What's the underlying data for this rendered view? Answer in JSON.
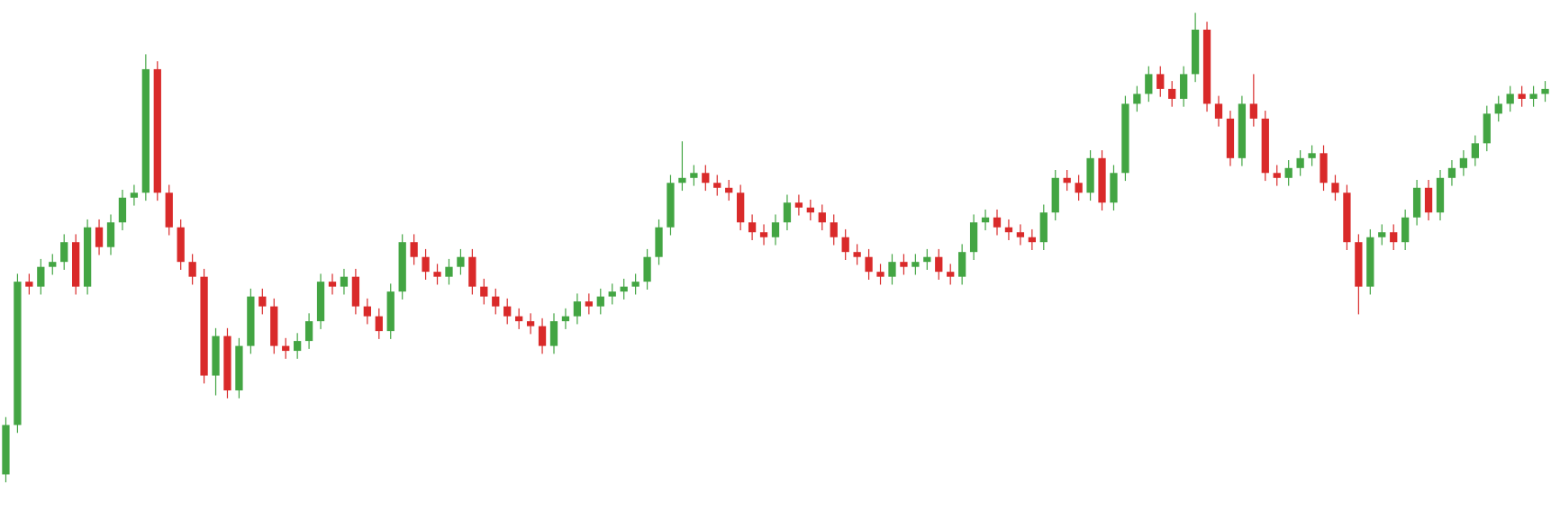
{
  "chart_data": {
    "type": "candlestick",
    "open": [
      36,
      86,
      231,
      226,
      246,
      251,
      271,
      226,
      286,
      266,
      291,
      316,
      321,
      446,
      321,
      286,
      251,
      236,
      136,
      176,
      121,
      166,
      216,
      206,
      166,
      161,
      171,
      191,
      231,
      226,
      236,
      206,
      196,
      181,
      221,
      271,
      256,
      241,
      236,
      246,
      256,
      226,
      216,
      206,
      196,
      191,
      186,
      166,
      191,
      196,
      211,
      206,
      216,
      221,
      226,
      231,
      256,
      286,
      331,
      336,
      341,
      331,
      326,
      321,
      291,
      281,
      276,
      291,
      311,
      306,
      301,
      291,
      276,
      261,
      256,
      241,
      236,
      251,
      246,
      251,
      256,
      241,
      236,
      261,
      291,
      296,
      286,
      281,
      276,
      271,
      301,
      336,
      331,
      321,
      356,
      311,
      341,
      411,
      421,
      441,
      426,
      416,
      441,
      486,
      411,
      396,
      356,
      411,
      396,
      341,
      336,
      346,
      356,
      361,
      331,
      321,
      271,
      226,
      276,
      281,
      271,
      296,
      326,
      301,
      336,
      346,
      356,
      371,
      401,
      411,
      421,
      416,
      421
    ],
    "high": [
      94,
      239,
      239,
      254,
      259,
      279,
      279,
      294,
      294,
      299,
      324,
      329,
      461,
      454,
      329,
      294,
      259,
      244,
      184,
      184,
      174,
      224,
      224,
      214,
      174,
      179,
      199,
      239,
      239,
      244,
      244,
      214,
      204,
      229,
      279,
      279,
      264,
      249,
      254,
      264,
      264,
      234,
      224,
      214,
      204,
      199,
      194,
      199,
      204,
      219,
      219,
      224,
      229,
      234,
      239,
      264,
      294,
      339,
      373,
      349,
      349,
      339,
      334,
      329,
      299,
      289,
      299,
      319,
      319,
      314,
      309,
      299,
      284,
      269,
      264,
      249,
      259,
      259,
      259,
      264,
      264,
      249,
      269,
      299,
      304,
      304,
      294,
      289,
      284,
      309,
      344,
      344,
      339,
      364,
      364,
      349,
      419,
      429,
      449,
      449,
      434,
      449,
      503,
      494,
      419,
      404,
      419,
      441,
      404,
      349,
      354,
      364,
      369,
      369,
      339,
      329,
      279,
      284,
      289,
      289,
      304,
      334,
      334,
      344,
      354,
      364,
      379,
      409,
      419,
      429,
      429,
      429,
      434
    ],
    "low": [
      28,
      78,
      218,
      218,
      238,
      243,
      218,
      218,
      258,
      258,
      283,
      308,
      313,
      313,
      278,
      243,
      228,
      128,
      116,
      113,
      113,
      158,
      198,
      158,
      153,
      153,
      163,
      183,
      218,
      218,
      198,
      188,
      173,
      173,
      213,
      248,
      233,
      228,
      228,
      238,
      218,
      208,
      198,
      188,
      183,
      178,
      158,
      158,
      183,
      188,
      198,
      198,
      208,
      213,
      218,
      223,
      248,
      278,
      323,
      328,
      323,
      318,
      313,
      283,
      273,
      268,
      268,
      283,
      298,
      293,
      283,
      268,
      253,
      248,
      233,
      228,
      228,
      238,
      238,
      243,
      233,
      228,
      228,
      253,
      283,
      278,
      273,
      268,
      263,
      263,
      293,
      323,
      313,
      313,
      303,
      303,
      333,
      403,
      413,
      418,
      408,
      408,
      433,
      403,
      388,
      348,
      348,
      388,
      333,
      328,
      328,
      338,
      348,
      323,
      313,
      263,
      198,
      218,
      268,
      263,
      263,
      288,
      293,
      293,
      328,
      338,
      348,
      363,
      393,
      403,
      408,
      408,
      413
    ],
    "close": [
      86,
      231,
      226,
      246,
      251,
      271,
      226,
      286,
      266,
      291,
      316,
      321,
      446,
      321,
      286,
      251,
      236,
      136,
      176,
      121,
      166,
      216,
      206,
      166,
      161,
      171,
      191,
      231,
      226,
      236,
      206,
      196,
      181,
      221,
      271,
      256,
      241,
      236,
      246,
      256,
      226,
      216,
      206,
      196,
      191,
      186,
      166,
      191,
      196,
      211,
      206,
      216,
      221,
      226,
      231,
      256,
      286,
      331,
      336,
      341,
      331,
      326,
      321,
      291,
      281,
      276,
      291,
      311,
      306,
      301,
      291,
      276,
      261,
      256,
      241,
      236,
      251,
      246,
      251,
      256,
      241,
      236,
      261,
      291,
      296,
      286,
      281,
      276,
      271,
      301,
      336,
      331,
      321,
      356,
      311,
      341,
      411,
      421,
      441,
      426,
      416,
      441,
      486,
      411,
      396,
      356,
      411,
      396,
      341,
      336,
      346,
      356,
      361,
      331,
      321,
      271,
      226,
      276,
      281,
      271,
      296,
      326,
      301,
      336,
      346,
      356,
      371,
      401,
      411,
      421,
      416,
      421,
      426
    ],
    "ylim": [
      0,
      516
    ],
    "up_color": "#43a543",
    "down_color": "#d92a2a"
  }
}
